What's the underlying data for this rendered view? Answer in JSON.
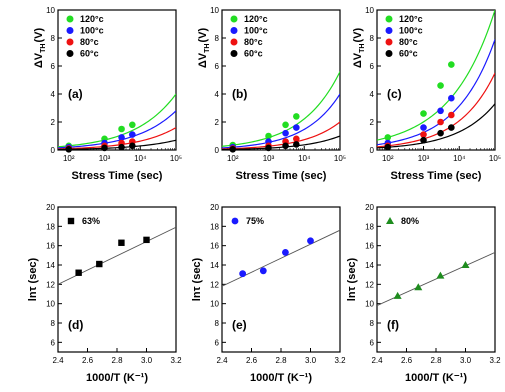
{
  "chart_data": [
    {
      "id": "a",
      "type": "scatter",
      "panel_label": "(a)",
      "xlabel": "Stress Time  (sec)",
      "ylabel_main": "ΔV",
      "ylabel_sub": "TH",
      "ylabel_unit": "(V)",
      "xscale": "log",
      "xlim": [
        50,
        100000
      ],
      "ylim": [
        0,
        10
      ],
      "x_ticks": [
        100,
        1000,
        10000,
        100000
      ],
      "x_tick_labels": [
        "10²",
        "10³",
        "10⁴",
        "10⁵"
      ],
      "y_ticks": [
        0,
        2,
        4,
        6,
        8,
        10
      ],
      "y_tick_labels": [
        "0",
        "2",
        "4",
        "6",
        "8",
        "10"
      ],
      "legend_position": "top-left",
      "series": [
        {
          "name": "120°c",
          "color": "#22dd22",
          "x": [
            100,
            1000,
            3000,
            6000
          ],
          "y": [
            0.3,
            0.8,
            1.5,
            1.8
          ],
          "fit_end": 4.0
        },
        {
          "name": "100°c",
          "color": "#1a1aff",
          "x": [
            100,
            1000,
            3000,
            6000
          ],
          "y": [
            0.2,
            0.5,
            0.9,
            1.1
          ],
          "fit_end": 2.8
        },
        {
          "name": "80°c",
          "color": "#ee1111",
          "x": [
            100,
            1000,
            3000,
            6000
          ],
          "y": [
            0.1,
            0.3,
            0.5,
            0.6
          ],
          "fit_end": 1.6
        },
        {
          "name": "60°c",
          "color": "#000000",
          "x": [
            100,
            1000,
            3000,
            6000
          ],
          "y": [
            0.05,
            0.15,
            0.2,
            0.3
          ],
          "fit_end": 0.7
        }
      ]
    },
    {
      "id": "b",
      "type": "scatter",
      "panel_label": "(b)",
      "xlabel": "Stress Time  (sec)",
      "ylabel_main": "ΔV",
      "ylabel_sub": "TH",
      "ylabel_unit": "(V)",
      "xscale": "log",
      "xlim": [
        50,
        100000
      ],
      "ylim": [
        0,
        10
      ],
      "x_ticks": [
        100,
        1000,
        10000,
        100000
      ],
      "x_tick_labels": [
        "10²",
        "10³",
        "10⁴",
        "10⁵"
      ],
      "y_ticks": [
        0,
        2,
        4,
        6,
        8,
        10
      ],
      "y_tick_labels": [
        "0",
        "2",
        "4",
        "6",
        "8",
        "10"
      ],
      "legend_position": "top-left",
      "series": [
        {
          "name": "120°c",
          "color": "#22dd22",
          "x": [
            100,
            1000,
            3000,
            6000
          ],
          "y": [
            0.35,
            1.0,
            1.8,
            2.4
          ],
          "fit_end": 5.6
        },
        {
          "name": "100°c",
          "color": "#1a1aff",
          "x": [
            100,
            1000,
            3000,
            6000
          ],
          "y": [
            0.2,
            0.6,
            1.2,
            1.6
          ],
          "fit_end": 4.0
        },
        {
          "name": "80°c",
          "color": "#ee1111",
          "x": [
            100,
            1000,
            3000,
            6000
          ],
          "y": [
            0.1,
            0.3,
            0.6,
            0.8
          ],
          "fit_end": 2.0
        },
        {
          "name": "60°c",
          "color": "#000000",
          "x": [
            100,
            1000,
            3000,
            6000
          ],
          "y": [
            0.05,
            0.15,
            0.3,
            0.4
          ],
          "fit_end": 1.0
        }
      ]
    },
    {
      "id": "c",
      "type": "scatter",
      "panel_label": "(c)",
      "xlabel": "Stress Time  (sec)",
      "ylabel_main": "ΔV",
      "ylabel_sub": "TH",
      "ylabel_unit": "(V)",
      "xscale": "log",
      "xlim": [
        50,
        100000
      ],
      "ylim": [
        0,
        10
      ],
      "x_ticks": [
        100,
        1000,
        10000,
        100000
      ],
      "x_tick_labels": [
        "10²",
        "10³",
        "10⁴",
        "10⁵"
      ],
      "y_ticks": [
        0,
        2,
        4,
        6,
        8,
        10
      ],
      "y_tick_labels": [
        "0",
        "2",
        "4",
        "6",
        "8",
        "10"
      ],
      "legend_position": "top-left",
      "series": [
        {
          "name": "120°c",
          "color": "#22dd22",
          "x": [
            100,
            1000,
            3000,
            6000
          ],
          "y": [
            0.9,
            2.6,
            4.6,
            6.1
          ],
          "fit_end": 10.0
        },
        {
          "name": "100°c",
          "color": "#1a1aff",
          "x": [
            100,
            1000,
            3000,
            6000
          ],
          "y": [
            0.5,
            1.6,
            2.8,
            3.7
          ],
          "fit_end": 7.9
        },
        {
          "name": "80°c",
          "color": "#ee1111",
          "x": [
            100,
            1000,
            3000,
            6000
          ],
          "y": [
            0.3,
            1.1,
            2.0,
            2.5
          ],
          "fit_end": 5.5
        },
        {
          "name": "60°c",
          "color": "#000000",
          "x": [
            100,
            1000,
            3000,
            6000
          ],
          "y": [
            0.2,
            0.7,
            1.2,
            1.6
          ],
          "fit_end": 3.3
        }
      ]
    },
    {
      "id": "d",
      "type": "scatter",
      "panel_label": "(d)",
      "xlabel": "1000/T (K⁻¹)",
      "ylabel": "lnτ (sec)",
      "xlim": [
        2.4,
        3.2
      ],
      "ylim": [
        5,
        20
      ],
      "x_ticks": [
        2.4,
        2.6,
        2.8,
        3.0,
        3.2
      ],
      "x_tick_labels": [
        "2.4",
        "2.6",
        "2.8",
        "3.0",
        "3.2"
      ],
      "y_ticks": [
        6,
        8,
        10,
        12,
        14,
        16,
        18,
        20
      ],
      "y_tick_labels": [
        "6",
        "8",
        "10",
        "12",
        "14",
        "16",
        "18",
        "20"
      ],
      "legend_position": "top-left",
      "fit_line": {
        "x": [
          2.4,
          3.2
        ],
        "y": [
          12.0,
          17.9
        ]
      },
      "series": [
        {
          "name": "63%",
          "color": "#000000",
          "marker": "square",
          "x": [
            2.54,
            2.68,
            2.83,
            3.0
          ],
          "y": [
            13.2,
            14.1,
            16.3,
            16.6
          ]
        }
      ]
    },
    {
      "id": "e",
      "type": "scatter",
      "panel_label": "(e)",
      "xlabel": "1000/T (K⁻¹)",
      "ylabel": "lnτ (sec)",
      "xlim": [
        2.4,
        3.2
      ],
      "ylim": [
        5,
        20
      ],
      "x_ticks": [
        2.4,
        2.6,
        2.8,
        3.0,
        3.2
      ],
      "x_tick_labels": [
        "2.4",
        "2.6",
        "2.8",
        "3.0",
        "3.2"
      ],
      "y_ticks": [
        6,
        8,
        10,
        12,
        14,
        16,
        18,
        20
      ],
      "y_tick_labels": [
        "6",
        "8",
        "10",
        "12",
        "14",
        "16",
        "18",
        "20"
      ],
      "legend_position": "top-left",
      "fit_line": {
        "x": [
          2.4,
          3.2
        ],
        "y": [
          11.8,
          17.6
        ]
      },
      "series": [
        {
          "name": "75%",
          "color": "#1a1aff",
          "marker": "circle",
          "x": [
            2.54,
            2.68,
            2.83,
            3.0
          ],
          "y": [
            13.1,
            13.4,
            15.3,
            16.5
          ]
        }
      ]
    },
    {
      "id": "f",
      "type": "scatter",
      "panel_label": "(f)",
      "xlabel": "1000/T (K⁻¹)",
      "ylabel": "lnτ (sec)",
      "xlim": [
        2.4,
        3.2
      ],
      "ylim": [
        5,
        20
      ],
      "x_ticks": [
        2.4,
        2.6,
        2.8,
        3.0,
        3.2
      ],
      "x_tick_labels": [
        "2.4",
        "2.6",
        "2.8",
        "3.0",
        "3.2"
      ],
      "y_ticks": [
        6,
        8,
        10,
        12,
        14,
        16,
        18,
        20
      ],
      "y_tick_labels": [
        "6",
        "8",
        "10",
        "12",
        "14",
        "16",
        "18",
        "20"
      ],
      "legend_position": "top-left",
      "fit_line": {
        "x": [
          2.4,
          3.2
        ],
        "y": [
          9.8,
          15.3
        ]
      },
      "series": [
        {
          "name": "80%",
          "color": "#1e8c1e",
          "marker": "triangle",
          "x": [
            2.54,
            2.68,
            2.83,
            3.0
          ],
          "y": [
            10.8,
            11.7,
            12.9,
            14.0
          ]
        }
      ]
    }
  ]
}
